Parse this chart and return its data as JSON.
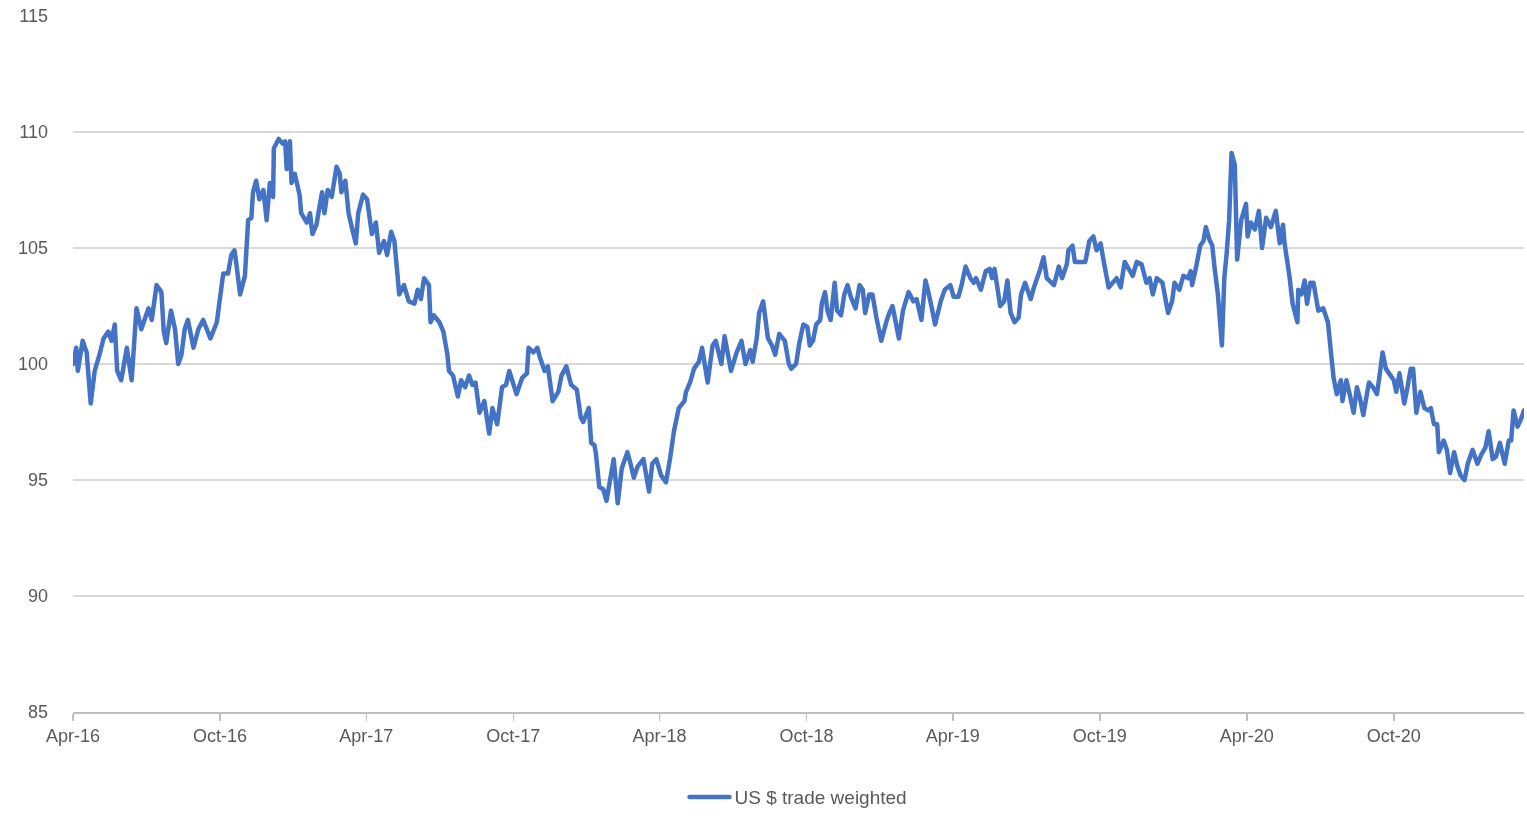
{
  "chart_data": {
    "type": "line",
    "x": [
      "2016-04-01",
      "2016-04-05",
      "2016-04-07",
      "2016-04-13",
      "2016-04-18",
      "2016-04-23",
      "2016-04-28",
      "2016-05-04",
      "2016-05-09",
      "2016-05-15",
      "2016-05-19",
      "2016-05-23",
      "2016-05-26",
      "2016-05-31",
      "2016-06-07",
      "2016-06-13",
      "2016-06-19",
      "2016-06-25",
      "2016-07-04",
      "2016-07-08",
      "2016-07-14",
      "2016-07-20",
      "2016-07-23",
      "2016-07-26",
      "2016-08-01",
      "2016-08-06",
      "2016-08-10",
      "2016-08-14",
      "2016-08-18",
      "2016-08-22",
      "2016-08-29",
      "2016-09-04",
      "2016-09-10",
      "2016-09-19",
      "2016-09-27",
      "2016-10-05",
      "2016-10-11",
      "2016-10-15",
      "2016-10-19",
      "2016-10-21",
      "2016-10-26",
      "2016-11-01",
      "2016-11-05",
      "2016-11-09",
      "2016-11-11",
      "2016-11-15",
      "2016-11-19",
      "2016-11-24",
      "2016-11-28",
      "2016-12-02",
      "2016-12-06",
      "2016-12-07",
      "2016-12-13",
      "2016-12-18",
      "2016-12-21",
      "2016-12-23",
      "2016-12-27",
      "2016-12-29",
      "2017-01-02",
      "2017-01-08",
      "2017-01-10",
      "2017-01-17",
      "2017-01-21",
      "2017-01-24",
      "2017-01-29",
      "2017-02-02",
      "2017-02-05",
      "2017-02-08",
      "2017-02-12",
      "2017-02-17",
      "2017-02-23",
      "2017-02-27",
      "2017-03-01",
      "2017-03-06",
      "2017-03-10",
      "2017-03-14",
      "2017-03-19",
      "2017-03-22",
      "2017-03-28",
      "2017-04-02",
      "2017-04-08",
      "2017-04-13",
      "2017-04-17",
      "2017-04-23",
      "2017-04-27",
      "2017-05-02",
      "2017-05-06",
      "2017-05-10",
      "2017-05-12",
      "2017-05-18",
      "2017-05-24",
      "2017-05-31",
      "2017-06-04",
      "2017-06-08",
      "2017-06-12",
      "2017-06-18",
      "2017-06-20",
      "2017-06-24",
      "2017-07-01",
      "2017-07-06",
      "2017-07-11",
      "2017-07-13",
      "2017-07-18",
      "2017-07-24",
      "2017-07-28",
      "2017-08-02",
      "2017-08-07",
      "2017-08-11",
      "2017-08-15",
      "2017-08-20",
      "2017-08-26",
      "2017-09-01",
      "2017-09-05",
      "2017-09-11",
      "2017-09-17",
      "2017-09-22",
      "2017-09-26",
      "2017-10-05",
      "2017-10-12",
      "2017-10-18",
      "2017-10-20",
      "2017-10-26",
      "2017-10-31",
      "2017-11-03",
      "2017-11-09",
      "2017-11-13",
      "2017-11-19",
      "2017-11-26",
      "2017-11-30",
      "2017-12-06",
      "2017-12-12",
      "2017-12-19",
      "2017-12-24",
      "2017-12-27",
      "2018-01-03",
      "2018-01-06",
      "2018-01-10",
      "2018-01-12",
      "2018-01-16",
      "2018-01-21",
      "2018-01-25",
      "2018-02-03",
      "2018-02-08",
      "2018-02-13",
      "2018-02-20",
      "2018-02-24",
      "2018-02-28",
      "2018-03-05",
      "2018-03-12",
      "2018-03-19",
      "2018-03-23",
      "2018-03-28",
      "2018-04-03",
      "2018-04-09",
      "2018-04-14",
      "2018-04-19",
      "2018-04-25",
      "2018-05-02",
      "2018-05-04",
      "2018-05-09",
      "2018-05-14",
      "2018-05-20",
      "2018-05-24",
      "2018-05-31",
      "2018-06-06",
      "2018-06-10",
      "2018-06-17",
      "2018-06-21",
      "2018-06-29",
      "2018-07-06",
      "2018-07-12",
      "2018-07-17",
      "2018-07-23",
      "2018-07-26",
      "2018-07-31",
      "2018-08-03",
      "2018-08-08",
      "2018-08-14",
      "2018-08-19",
      "2018-08-23",
      "2018-08-28",
      "2018-09-04",
      "2018-09-09",
      "2018-09-12",
      "2018-09-18",
      "2018-09-22",
      "2018-09-27",
      "2018-10-02",
      "2018-10-05",
      "2018-10-09",
      "2018-10-13",
      "2018-10-18",
      "2018-10-20",
      "2018-10-24",
      "2018-10-27",
      "2018-10-31",
      "2018-11-05",
      "2018-11-08",
      "2018-11-13",
      "2018-11-17",
      "2018-11-21",
      "2018-11-25",
      "2018-12-01",
      "2018-12-06",
      "2018-12-10",
      "2018-12-13",
      "2018-12-18",
      "2018-12-22",
      "2018-12-27",
      "2019-01-02",
      "2019-01-09",
      "2019-01-12",
      "2019-01-16",
      "2019-01-24",
      "2019-01-29",
      "2019-02-05",
      "2019-02-11",
      "2019-02-15",
      "2019-02-21",
      "2019-02-26",
      "2019-03-01",
      "2019-03-06",
      "2019-03-10",
      "2019-03-17",
      "2019-03-22",
      "2019-03-29",
      "2019-04-02",
      "2019-04-08",
      "2019-04-12",
      "2019-04-17",
      "2019-04-23",
      "2019-04-27",
      "2019-04-30",
      "2019-05-06",
      "2019-05-12",
      "2019-05-17",
      "2019-05-20",
      "2019-05-23",
      "2019-05-30",
      "2019-06-04",
      "2019-06-08",
      "2019-06-12",
      "2019-06-17",
      "2019-06-22",
      "2019-06-25",
      "2019-06-30",
      "2019-07-07",
      "2019-07-11",
      "2019-07-15",
      "2019-07-19",
      "2019-07-23",
      "2019-07-27",
      "2019-08-05",
      "2019-08-11",
      "2019-08-15",
      "2019-08-21",
      "2019-08-23",
      "2019-08-28",
      "2019-08-31",
      "2019-09-06",
      "2019-09-13",
      "2019-09-18",
      "2019-09-23",
      "2019-09-27",
      "2019-10-02",
      "2019-10-06",
      "2019-10-12",
      "2019-10-17",
      "2019-10-22",
      "2019-10-27",
      "2019-11-01",
      "2019-11-06",
      "2019-11-11",
      "2019-11-16",
      "2019-11-22",
      "2019-11-28",
      "2019-12-02",
      "2019-12-06",
      "2019-12-11",
      "2019-12-18",
      "2019-12-25",
      "2019-12-30",
      "2020-01-02",
      "2020-01-08",
      "2020-01-13",
      "2020-01-19",
      "2020-01-22",
      "2020-01-24",
      "2020-01-29",
      "2020-02-03",
      "2020-02-07",
      "2020-02-10",
      "2020-02-14",
      "2020-02-18",
      "2020-02-21",
      "2020-02-25",
      "2020-03-01",
      "2020-03-04",
      "2020-03-07",
      "2020-03-10",
      "2020-03-13",
      "2020-03-17",
      "2020-03-20",
      "2020-03-25",
      "2020-03-31",
      "2020-04-02",
      "2020-04-06",
      "2020-04-11",
      "2020-04-16",
      "2020-04-20",
      "2020-04-25",
      "2020-05-01",
      "2020-05-07",
      "2020-05-12",
      "2020-05-16",
      "2020-05-18",
      "2020-05-24",
      "2020-05-28",
      "2020-06-03",
      "2020-06-04",
      "2020-06-08",
      "2020-06-12",
      "2020-06-15",
      "2020-06-19",
      "2020-06-23",
      "2020-06-29",
      "2020-07-05",
      "2020-07-11",
      "2020-07-15",
      "2020-07-18",
      "2020-07-22",
      "2020-07-27",
      "2020-07-29",
      "2020-08-03",
      "2020-08-07",
      "2020-08-12",
      "2020-08-16",
      "2020-08-20",
      "2020-08-24",
      "2020-08-27",
      "2020-08-31",
      "2020-09-05",
      "2020-09-10",
      "2020-09-14",
      "2020-09-17",
      "2020-09-21",
      "2020-09-27",
      "2020-10-01",
      "2020-10-04",
      "2020-10-08",
      "2020-10-14",
      "2020-10-18",
      "2020-10-22",
      "2020-10-25",
      "2020-10-29",
      "2020-11-03",
      "2020-11-08",
      "2020-11-13",
      "2020-11-16",
      "2020-11-20",
      "2020-11-24",
      "2020-11-26",
      "2020-12-02",
      "2020-12-06",
      "2020-12-10",
      "2020-12-15",
      "2020-12-19",
      "2020-12-23",
      "2020-12-28",
      "2021-01-01",
      "2021-01-07",
      "2021-01-13",
      "2021-01-18",
      "2021-01-23",
      "2021-01-27",
      "2021-02-01",
      "2021-02-05",
      "2021-02-10",
      "2021-02-16",
      "2021-02-21",
      "2021-02-24",
      "2021-02-27",
      "2021-03-04",
      "2021-03-08",
      "2021-03-12"
    ],
    "series": [
      {
        "name": "US $ trade weighted",
        "color": "#4472c4",
        "values": [
          100.0,
          100.7,
          99.7,
          101.0,
          100.5,
          98.3,
          99.7,
          100.4,
          101.1,
          101.4,
          101.0,
          101.7,
          99.7,
          99.3,
          100.7,
          99.3,
          102.4,
          101.5,
          102.4,
          101.9,
          103.4,
          103.1,
          101.4,
          100.9,
          102.3,
          101.5,
          100.0,
          100.4,
          101.5,
          101.9,
          100.7,
          101.5,
          101.9,
          101.1,
          101.8,
          103.9,
          103.9,
          104.7,
          104.9,
          104.4,
          103.0,
          103.8,
          106.2,
          106.3,
          107.4,
          107.9,
          107.1,
          107.5,
          106.2,
          107.8,
          107.2,
          109.3,
          109.7,
          109.5,
          109.6,
          108.4,
          109.6,
          107.8,
          108.2,
          107.3,
          106.5,
          106.1,
          106.5,
          105.6,
          106.0,
          106.8,
          107.4,
          106.5,
          107.5,
          107.2,
          108.5,
          108.2,
          107.4,
          107.9,
          106.5,
          105.9,
          105.2,
          106.5,
          107.3,
          107.1,
          105.6,
          106.1,
          104.8,
          105.3,
          104.7,
          105.7,
          105.3,
          103.8,
          103.0,
          103.4,
          102.7,
          102.6,
          103.2,
          102.8,
          103.7,
          103.4,
          101.8,
          102.1,
          101.8,
          101.4,
          100.4,
          99.7,
          99.5,
          98.6,
          99.3,
          99.0,
          99.5,
          99.1,
          99.2,
          97.9,
          98.4,
          97.0,
          98.1,
          97.4,
          99.0,
          99.1,
          99.7,
          98.7,
          99.4,
          99.6,
          100.7,
          100.5,
          100.7,
          100.3,
          99.7,
          99.9,
          98.4,
          98.8,
          99.5,
          99.9,
          99.1,
          98.9,
          97.7,
          97.5,
          98.1,
          96.6,
          96.5,
          96.1,
          94.7,
          94.6,
          94.1,
          95.9,
          94.0,
          95.5,
          96.2,
          95.7,
          95.1,
          95.6,
          95.9,
          94.5,
          95.7,
          95.9,
          95.2,
          94.9,
          95.9,
          97.1,
          98.1,
          98.4,
          98.8,
          99.2,
          99.8,
          100.1,
          100.7,
          99.2,
          100.8,
          101.0,
          100.0,
          101.2,
          99.7,
          100.5,
          101.0,
          100.0,
          100.6,
          100.1,
          101.1,
          102.2,
          102.7,
          101.1,
          100.8,
          100.4,
          101.3,
          101.0,
          100.0,
          99.8,
          100.0,
          100.9,
          101.7,
          101.6,
          100.8,
          101.0,
          101.7,
          101.9,
          102.6,
          103.1,
          102.3,
          101.9,
          103.5,
          102.3,
          102.1,
          103.0,
          103.4,
          102.9,
          102.4,
          103.4,
          103.2,
          102.2,
          103.0,
          103.0,
          102.0,
          101.0,
          101.9,
          102.2,
          102.5,
          101.1,
          102.3,
          103.1,
          102.7,
          102.8,
          101.9,
          103.6,
          103.2,
          102.4,
          101.7,
          102.7,
          103.2,
          103.4,
          102.9,
          102.9,
          103.4,
          104.2,
          103.7,
          103.5,
          103.7,
          103.2,
          104.0,
          104.1,
          103.7,
          104.1,
          102.5,
          102.7,
          103.6,
          102.2,
          101.8,
          102.0,
          103.0,
          103.5,
          102.8,
          103.3,
          103.7,
          104.1,
          104.6,
          103.7,
          103.4,
          104.2,
          103.7,
          104.3,
          104.9,
          105.1,
          104.4,
          104.4,
          104.4,
          105.3,
          105.5,
          104.9,
          105.2,
          104.4,
          103.3,
          103.5,
          103.7,
          103.3,
          104.4,
          104.1,
          103.8,
          104.4,
          104.3,
          103.5,
          103.7,
          103.0,
          103.7,
          103.5,
          102.2,
          102.7,
          103.5,
          103.2,
          103.8,
          103.7,
          104.0,
          103.4,
          104.2,
          105.1,
          105.3,
          105.9,
          105.4,
          105.1,
          104.1,
          103.0,
          100.8,
          103.7,
          104.8,
          106.2,
          109.1,
          108.6,
          104.5,
          106.2,
          106.9,
          105.5,
          106.1,
          105.8,
          106.6,
          105.0,
          106.3,
          105.9,
          106.6,
          105.2,
          106.0,
          105.2,
          103.8,
          102.6,
          101.8,
          103.2,
          103.0,
          103.6,
          102.6,
          103.5,
          103.5,
          102.3,
          102.4,
          101.8,
          100.4,
          99.4,
          98.7,
          99.3,
          98.4,
          99.3,
          98.7,
          97.9,
          99.0,
          98.5,
          97.8,
          98.4,
          99.2,
          99.0,
          98.7,
          99.7,
          100.5,
          99.8,
          99.5,
          99.3,
          98.8,
          99.6,
          98.3,
          99.0,
          99.8,
          99.8,
          97.9,
          98.8,
          98.1,
          98.0,
          98.1,
          97.4,
          97.4,
          96.2,
          96.7,
          96.3,
          95.3,
          96.2,
          95.6,
          95.2,
          95.0,
          95.7,
          96.3,
          95.7,
          96.1,
          96.4,
          97.1,
          95.9,
          96.0,
          96.6,
          95.7,
          96.7,
          96.7,
          98.0,
          97.3,
          97.6,
          98.0
        ]
      }
    ],
    "xlim": [
      "2016-04-01",
      "2021-03-12"
    ],
    "xticks": [
      {
        "value": "2016-04-01",
        "label": "Apr-16"
      },
      {
        "value": "2016-10-01",
        "label": "Oct-16"
      },
      {
        "value": "2017-04-01",
        "label": "Apr-17"
      },
      {
        "value": "2017-10-01",
        "label": "Oct-17"
      },
      {
        "value": "2018-04-01",
        "label": "Apr-18"
      },
      {
        "value": "2018-10-01",
        "label": "Oct-18"
      },
      {
        "value": "2019-04-01",
        "label": "Apr-19"
      },
      {
        "value": "2019-10-01",
        "label": "Oct-19"
      },
      {
        "value": "2020-04-01",
        "label": "Apr-20"
      },
      {
        "value": "2020-10-01",
        "label": "Oct-20"
      }
    ],
    "ylim": [
      85,
      115
    ],
    "yticks": [
      85,
      90,
      95,
      100,
      105,
      110,
      115
    ],
    "grid": "y",
    "legend": "bottom",
    "marker": "none",
    "line_style": "solid"
  }
}
